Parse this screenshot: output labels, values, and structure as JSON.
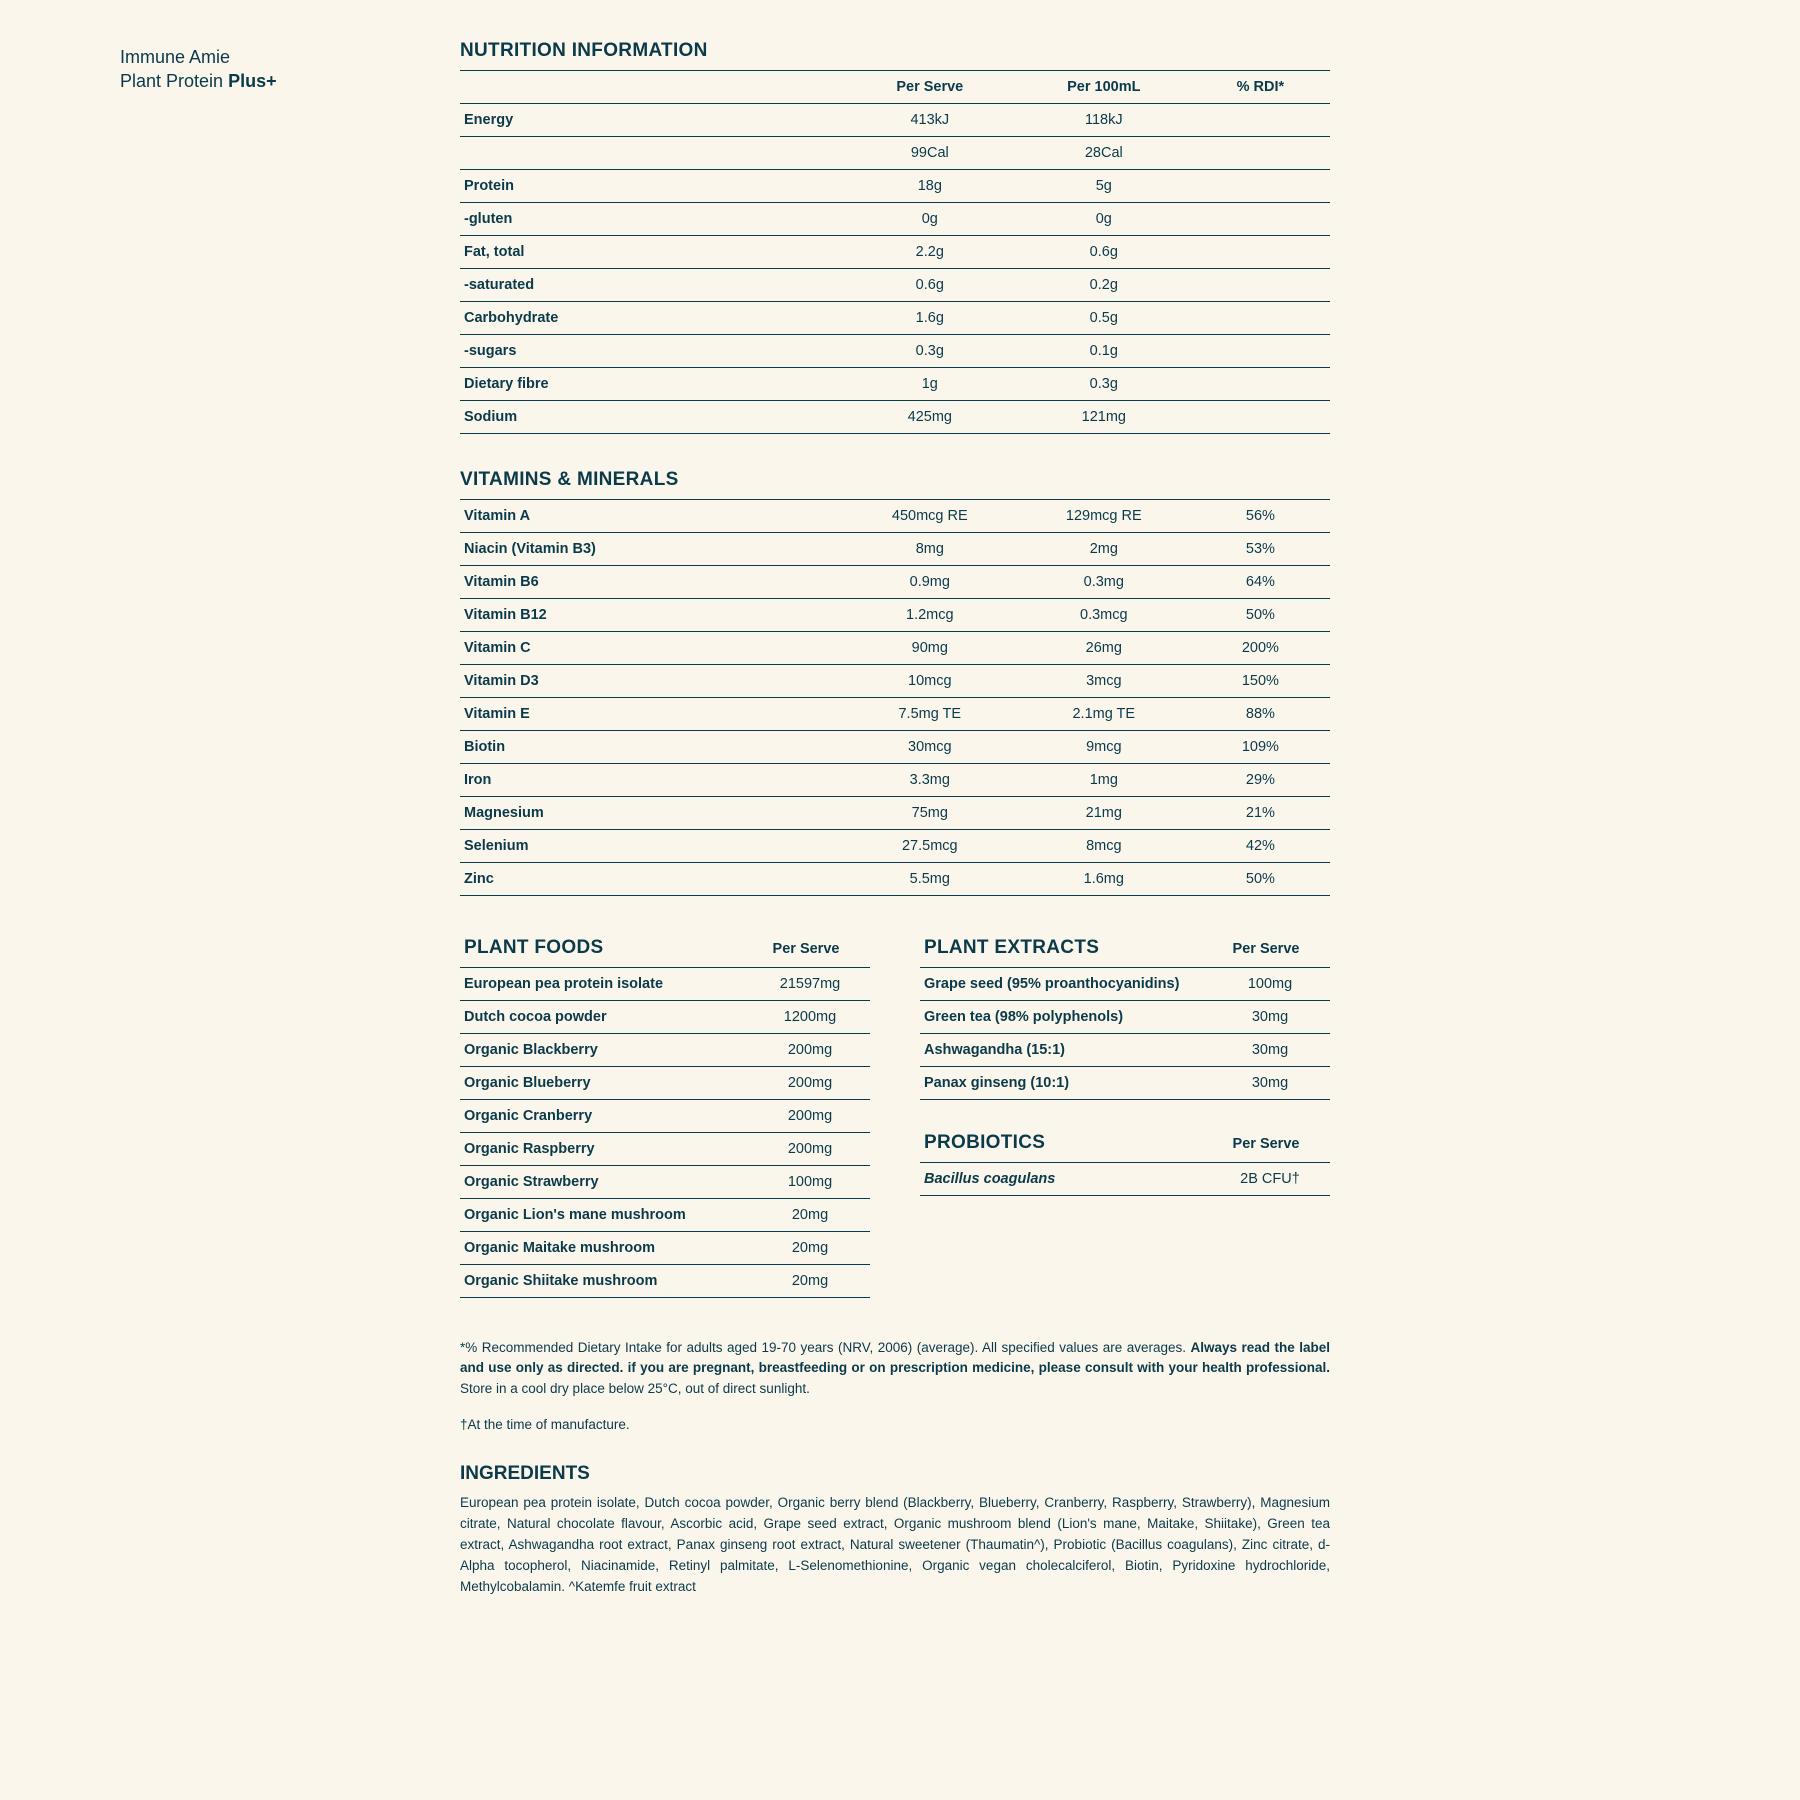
{
  "colors": {
    "bg": "#faf6ec",
    "text": "#0b3a4a",
    "rule": "#0b3a4a"
  },
  "product": {
    "line1": "Immune Amie",
    "line2_a": "Plant Protein ",
    "line2_b": "Plus+"
  },
  "sections": {
    "nutrition": "NUTRITION INFORMATION",
    "vitamins": "VITAMINS & MINERALS",
    "plantfoods": "PLANT FOODS",
    "plantextracts": "PLANT EXTRACTS",
    "probiotics": "PROBIOTICS",
    "ingredients": "INGREDIENTS"
  },
  "headers": {
    "perserve": "Per Serve",
    "per100": "Per 100mL",
    "rdi": "% RDI*"
  },
  "nutrition": [
    {
      "label": "Energy",
      "serve": "413kJ",
      "per100": "118kJ",
      "rdi": ""
    },
    {
      "label": "",
      "serve": "99Cal",
      "per100": "28Cal",
      "rdi": ""
    },
    {
      "label": "Protein",
      "serve": "18g",
      "per100": "5g",
      "rdi": ""
    },
    {
      "label": "-gluten",
      "serve": "0g",
      "per100": "0g",
      "rdi": ""
    },
    {
      "label": "Fat, total",
      "serve": "2.2g",
      "per100": "0.6g",
      "rdi": ""
    },
    {
      "label": "-saturated",
      "serve": "0.6g",
      "per100": "0.2g",
      "rdi": ""
    },
    {
      "label": "Carbohydrate",
      "serve": "1.6g",
      "per100": "0.5g",
      "rdi": ""
    },
    {
      "label": "-sugars",
      "serve": "0.3g",
      "per100": "0.1g",
      "rdi": ""
    },
    {
      "label": "Dietary fibre",
      "serve": "1g",
      "per100": "0.3g",
      "rdi": ""
    },
    {
      "label": "Sodium",
      "serve": "425mg",
      "per100": "121mg",
      "rdi": ""
    }
  ],
  "vitamins": [
    {
      "label": "Vitamin A",
      "serve": "450mcg RE",
      "per100": "129mcg RE",
      "rdi": "56%"
    },
    {
      "label": "Niacin (Vitamin B3)",
      "serve": "8mg",
      "per100": "2mg",
      "rdi": "53%"
    },
    {
      "label": "Vitamin B6",
      "serve": "0.9mg",
      "per100": "0.3mg",
      "rdi": "64%"
    },
    {
      "label": "Vitamin B12",
      "serve": "1.2mcg",
      "per100": "0.3mcg",
      "rdi": "50%"
    },
    {
      "label": "Vitamin C",
      "serve": "90mg",
      "per100": "26mg",
      "rdi": "200%"
    },
    {
      "label": "Vitamin D3",
      "serve": "10mcg",
      "per100": "3mcg",
      "rdi": "150%"
    },
    {
      "label": "Vitamin E",
      "serve": "7.5mg TE",
      "per100": "2.1mg TE",
      "rdi": "88%"
    },
    {
      "label": "Biotin",
      "serve": "30mcg",
      "per100": "9mcg",
      "rdi": "109%"
    },
    {
      "label": "Iron",
      "serve": "3.3mg",
      "per100": "1mg",
      "rdi": "29%"
    },
    {
      "label": "Magnesium",
      "serve": "75mg",
      "per100": "21mg",
      "rdi": "21%"
    },
    {
      "label": "Selenium",
      "serve": "27.5mcg",
      "per100": "8mcg",
      "rdi": "42%"
    },
    {
      "label": "Zinc",
      "serve": "5.5mg",
      "per100": "1.6mg",
      "rdi": "50%"
    }
  ],
  "plantfoods": [
    {
      "label": "European pea protein isolate",
      "serve": "21597mg"
    },
    {
      "label": "Dutch cocoa powder",
      "serve": "1200mg"
    },
    {
      "label": "Organic Blackberry",
      "serve": "200mg"
    },
    {
      "label": "Organic Blueberry",
      "serve": "200mg"
    },
    {
      "label": "Organic Cranberry",
      "serve": "200mg"
    },
    {
      "label": "Organic Raspberry",
      "serve": "200mg"
    },
    {
      "label": "Organic Strawberry",
      "serve": "100mg"
    },
    {
      "label": "Organic Lion's mane mushroom",
      "serve": "20mg"
    },
    {
      "label": "Organic Maitake mushroom",
      "serve": "20mg"
    },
    {
      "label": "Organic Shiitake mushroom",
      "serve": "20mg"
    }
  ],
  "plantextracts": [
    {
      "label": "Grape seed (95% proanthocyanidins)",
      "serve": "100mg"
    },
    {
      "label": "Green tea (98% polyphenols)",
      "serve": "30mg"
    },
    {
      "label": "Ashwagandha (15:1)",
      "serve": "30mg"
    },
    {
      "label": "Panax ginseng (10:1)",
      "serve": "30mg"
    }
  ],
  "probiotics": [
    {
      "label": "Bacillus coagulans",
      "serve": "2B CFU†",
      "italic": true
    }
  ],
  "notes": {
    "p1a": "*% Recommended Dietary Intake for adults aged 19-70 years (NRV, 2006) (average). All specified values are averages. ",
    "p1b": "Always read the label and use only as directed. if you are pregnant, breastfeeding or on prescription medicine, please consult with your health professional.",
    "p1c": " Store in a cool dry place below 25°C, out of direct sunlight.",
    "p2": " †At the time of manufacture."
  },
  "ingredients": "European pea protein isolate, Dutch cocoa powder, Organic berry blend (Blackberry, Blueberry, Cranberry, Raspberry, Strawberry), Magnesium citrate, Natural chocolate flavour, Ascorbic acid, Grape seed extract, Organic mushroom blend (Lion's mane, Maitake, Shiitake), Green tea extract, Ashwagandha root extract, Panax ginseng root extract, Natural sweetener (Thaumatin^), Probiotic (Bacillus coagulans), Zinc citrate, d-Alpha tocopherol, Niacinamide, Retinyl palmitate, L-Selenomethionine, Organic vegan cholecalciferol, Biotin, Pyridoxine hydrochloride, Methylcobalamin. ^Katemfe fruit extract"
}
